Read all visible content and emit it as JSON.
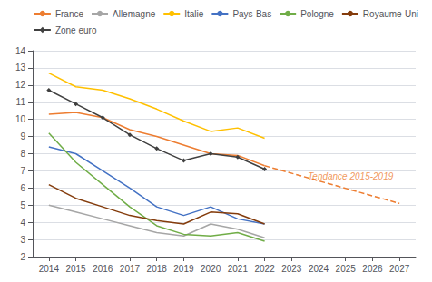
{
  "chart_data": {
    "type": "line",
    "x": [
      2014,
      2015,
      2016,
      2017,
      2018,
      2019,
      2020,
      2021,
      2022
    ],
    "series": [
      {
        "name": "France",
        "color": "#ed7d31",
        "values": [
          10.3,
          10.4,
          10.1,
          9.4,
          9.0,
          8.5,
          8.0,
          7.9,
          7.3
        ]
      },
      {
        "name": "Allemagne",
        "color": "#a6a6a6",
        "values": [
          5.0,
          4.6,
          4.2,
          3.8,
          3.4,
          3.2,
          3.9,
          3.6,
          3.1
        ]
      },
      {
        "name": "Italie",
        "color": "#ffc000",
        "values": [
          12.7,
          11.9,
          11.7,
          11.2,
          10.6,
          9.9,
          9.3,
          9.5,
          8.9
        ]
      },
      {
        "name": "Pays-Bas",
        "color": "#4472c4",
        "values": [
          8.4,
          8.0,
          7.0,
          6.0,
          4.9,
          4.4,
          4.9,
          4.2,
          3.9
        ]
      },
      {
        "name": "Pologne",
        "color": "#70ad47",
        "values": [
          9.2,
          7.5,
          6.2,
          4.9,
          3.8,
          3.3,
          3.2,
          3.4,
          2.9
        ]
      },
      {
        "name": "Royaume-Uni",
        "color": "#843c0c",
        "values": [
          6.2,
          5.4,
          4.9,
          4.4,
          4.1,
          3.9,
          4.6,
          4.5,
          3.9
        ]
      },
      {
        "name": "Zone euro",
        "color": "#404040",
        "marker": "diamond",
        "values": [
          11.7,
          10.9,
          10.1,
          9.1,
          8.3,
          7.6,
          8.0,
          7.8,
          7.1
        ]
      },
      {
        "color": "#ed7d31",
        "line_style": "dashed",
        "x": [
          2022,
          2027
        ],
        "values": [
          7.3,
          5.1
        ]
      }
    ],
    "annotations": [
      {
        "text": "Tendance 2015-2019",
        "x": 2023.6,
        "y": 6.7,
        "color": "#ed7d31"
      }
    ],
    "xlim": [
      2013.4,
      2027.6
    ],
    "xticks": [
      2014,
      2015,
      2016,
      2017,
      2018,
      2019,
      2020,
      2021,
      2022,
      2023,
      2024,
      2025,
      2026,
      2027
    ],
    "ylim": [
      2,
      14
    ],
    "yticks": [
      2,
      3,
      4,
      5,
      6,
      7,
      8,
      9,
      10,
      11,
      12,
      13,
      14
    ],
    "grid": true,
    "legend": "upper right"
  }
}
